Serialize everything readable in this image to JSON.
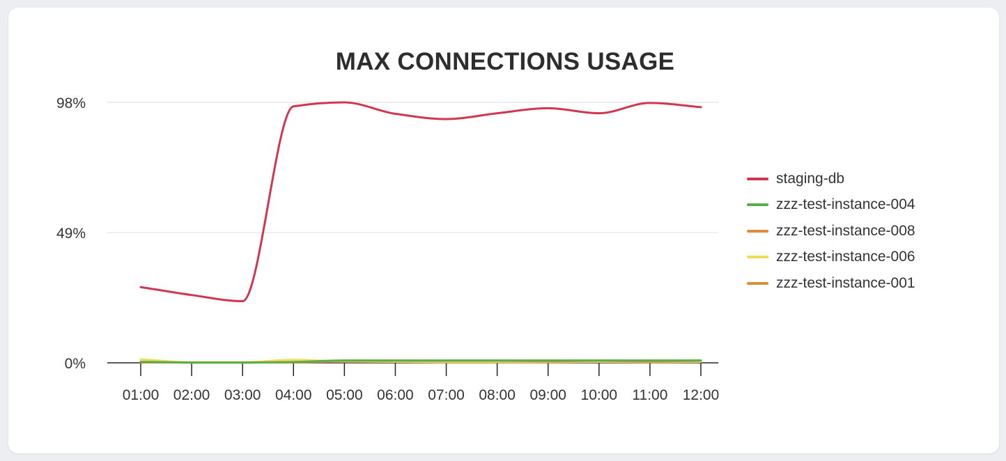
{
  "chart_data": {
    "type": "line",
    "title": "MAX CONNECTIONS USAGE",
    "x": [
      "01:00",
      "02:00",
      "03:00",
      "04:00",
      "05:00",
      "06:00",
      "07:00",
      "08:00",
      "09:00",
      "10:00",
      "11:00",
      "12:00"
    ],
    "y_ticks": [
      {
        "value": 0,
        "label": "0%"
      },
      {
        "value": 49,
        "label": "49%"
      },
      {
        "value": 98,
        "label": "98%"
      }
    ],
    "ylim": [
      0,
      98
    ],
    "grid": true,
    "legend_position": "right",
    "series": [
      {
        "name": "staging-db",
        "color": "#d0364f",
        "values": [
          28.5,
          25.5,
          23.2,
          96.5,
          98,
          93.7,
          91.7,
          93.9,
          95.8,
          93.9,
          97.8,
          96.2
        ]
      },
      {
        "name": "zzz-test-instance-004",
        "color": "#5aae4c",
        "values": [
          0.4,
          0.1,
          0.1,
          0.3,
          0.9,
          0.9,
          0.9,
          0.9,
          0.9,
          0.9,
          0.9,
          0.9
        ]
      },
      {
        "name": "zzz-test-instance-008",
        "color": "#e08a3c",
        "values": [
          0.3,
          0.1,
          0.1,
          0.3,
          0.8,
          0.8,
          0.8,
          0.8,
          0.6,
          0.8,
          0.5,
          0.8
        ]
      },
      {
        "name": "zzz-test-instance-006",
        "color": "#f2dc55",
        "values": [
          1.3,
          0.2,
          0.2,
          1.1,
          0.5,
          0.4,
          0.3,
          0.3,
          0.3,
          0.4,
          0.3,
          0.4
        ]
      },
      {
        "name": "zzz-test-instance-001",
        "color": "#e08a3c",
        "values": [
          0.2,
          0.1,
          0.1,
          0.2,
          0.5,
          0.5,
          0.5,
          0.5,
          0.5,
          0.5,
          0.5,
          0.5
        ]
      }
    ]
  }
}
